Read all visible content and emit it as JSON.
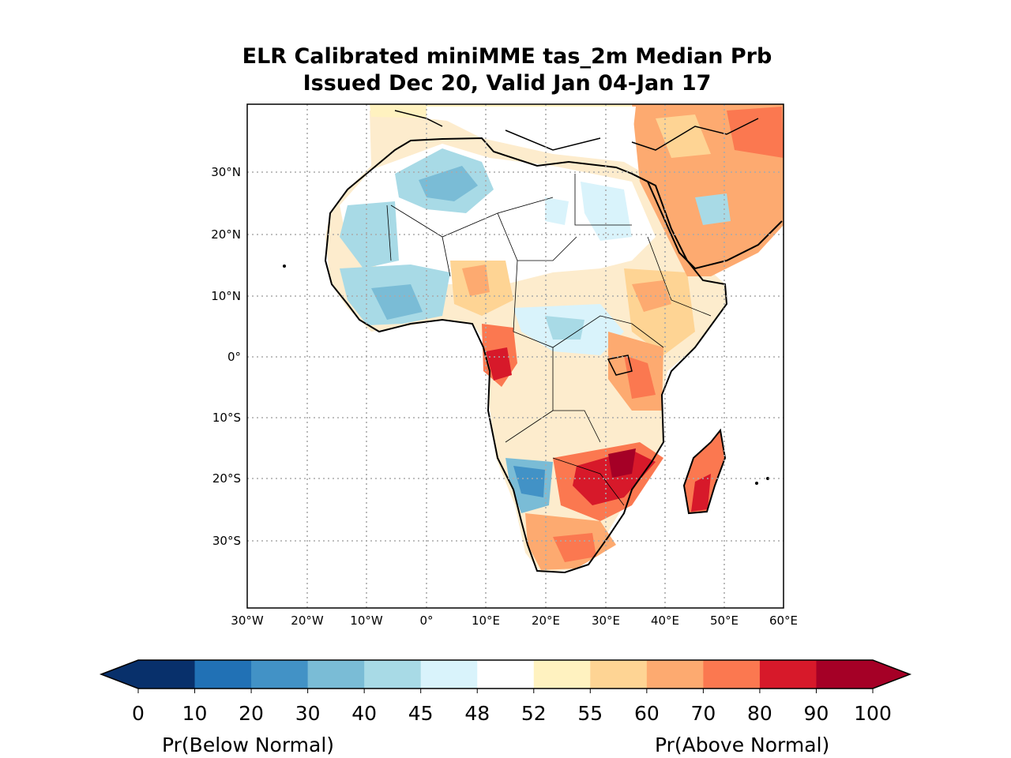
{
  "title": {
    "line1": "ELR Calibrated miniMME tas_2m Median Prb",
    "line2": "Issued Dec 20, Valid Jan 04-Jan 17"
  },
  "map": {
    "lat_labels": [
      "30°N",
      "20°N",
      "10°N",
      "0°",
      "10°S",
      "20°S",
      "30°S"
    ],
    "lon_labels": [
      "30°W",
      "20°W",
      "10°W",
      "0°",
      "10°E",
      "20°E",
      "30°E",
      "40°E",
      "50°E",
      "60°E"
    ],
    "grid": true
  },
  "colorbar": {
    "ticks": [
      "0",
      "10",
      "20",
      "30",
      "40",
      "45",
      "48",
      "52",
      "55",
      "60",
      "70",
      "80",
      "90",
      "100"
    ],
    "colors": [
      "#08306b",
      "#2171b5",
      "#4292c6",
      "#7abcd6",
      "#a8dae6",
      "#d9f3fb",
      "#ffffff",
      "#fff2c0",
      "#fed494",
      "#fdaa70",
      "#fb7850",
      "#d7192a",
      "#a50026"
    ],
    "below_label": "Pr(Below Normal)",
    "above_label": "Pr(Above Normal)"
  }
}
